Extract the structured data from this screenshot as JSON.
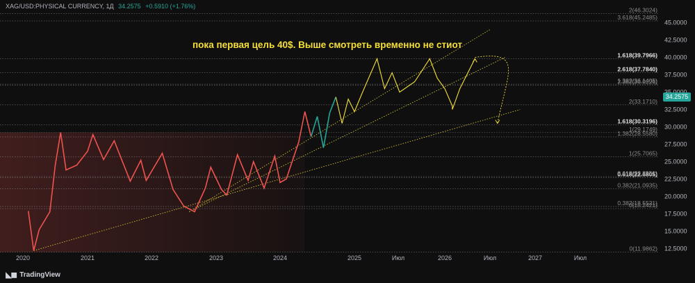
{
  "header": {
    "symbol": "XAG/USD:PHYSICAL CURRENCY, 1Д",
    "price": "34.2575",
    "change": "+0.5910 (+1.76%)"
  },
  "branding": {
    "logo_text": "TradingView"
  },
  "colors": {
    "background": "#0f0f0f",
    "up_candle": "#26a69a",
    "down_candle": "#ef5350",
    "projection": "#f5e03a",
    "trendline": "#d4c236",
    "fib_level": "#8a8a8a",
    "axis_text": "#b2b5be"
  },
  "chart_data": {
    "type": "line",
    "title": "пока первая цель 40$. Выше смотреть временно не стиот",
    "x_tick_labels": [
      "2020",
      "2021",
      "2022",
      "2023",
      "2024",
      "2025",
      "Июл",
      "2026",
      "Июл",
      "2027",
      "Июл"
    ],
    "y_tick_labels": [
      "12.5000",
      "15.0000",
      "17.5000",
      "20.0000",
      "22.5000",
      "25.0000",
      "27.5000",
      "30.0000",
      "32.5000",
      "35.0000",
      "37.5000",
      "40.0000",
      "42.5000",
      "45.0000"
    ],
    "ylim": [
      11.5,
      47.5
    ],
    "last_price": "34.2575",
    "series": [
      {
        "role": "history",
        "points": [
          [
            "2019-10",
            17.6
          ],
          [
            "2019-12",
            17.0
          ],
          [
            "2020-02",
            17.9
          ],
          [
            "2020-03",
            12.2
          ],
          [
            "2020-04",
            15.2
          ],
          [
            "2020-06",
            17.8
          ],
          [
            "2020-07",
            24.5
          ],
          [
            "2020-08",
            29.2
          ],
          [
            "2020-09",
            23.8
          ],
          [
            "2020-11",
            24.5
          ],
          [
            "2021-01",
            26.5
          ],
          [
            "2021-02",
            28.9
          ],
          [
            "2021-04",
            25.3
          ],
          [
            "2021-06",
            28.0
          ],
          [
            "2021-09",
            22.2
          ],
          [
            "2021-11",
            25.2
          ],
          [
            "2021-12",
            22.3
          ],
          [
            "2022-03",
            26.2
          ],
          [
            "2022-05",
            21.0
          ],
          [
            "2022-07",
            18.6
          ],
          [
            "2022-09",
            17.8
          ],
          [
            "2022-11",
            21.2
          ],
          [
            "2022-12",
            24.2
          ],
          [
            "2023-02",
            21.0
          ],
          [
            "2023-03",
            20.2
          ],
          [
            "2023-05",
            26.0
          ],
          [
            "2023-07",
            22.3
          ],
          [
            "2023-08",
            25.0
          ],
          [
            "2023-10",
            21.2
          ],
          [
            "2023-12",
            25.8
          ],
          [
            "2024-01",
            22.0
          ],
          [
            "2024-02",
            22.5
          ],
          [
            "2024-04",
            27.8
          ],
          [
            "2024-05",
            32.2
          ],
          [
            "2024-06",
            28.6
          ],
          [
            "2024-07",
            31.5
          ],
          [
            "2024-08",
            27.0
          ],
          [
            "2024-09",
            32.0
          ],
          [
            "2024-10",
            34.3
          ]
        ]
      },
      {
        "role": "projection",
        "points": [
          [
            "2024-10",
            34.3
          ],
          [
            "2024-11",
            30.5
          ],
          [
            "2024-12",
            34.0
          ],
          [
            "2025-01",
            32.2
          ],
          [
            "2025-02",
            34.8
          ],
          [
            "2025-04",
            39.8
          ],
          [
            "2025-05",
            35.5
          ],
          [
            "2025-06",
            37.8
          ],
          [
            "2025-07",
            35.0
          ],
          [
            "2025-09",
            36.5
          ],
          [
            "2025-11",
            39.8
          ],
          [
            "2025-12",
            37.0
          ],
          [
            "2026-01",
            35.5
          ],
          [
            "2026-02",
            33.0
          ],
          [
            "2026-02",
            32.5
          ],
          [
            "2026-03",
            35.5
          ],
          [
            "2026-05",
            39.8
          ]
        ]
      }
    ],
    "trendlines": [
      {
        "from": [
          "2020-03",
          12.2
        ],
        "to": [
          "2026-11",
          32.5
        ]
      },
      {
        "from": [
          "2022-08",
          17.8
        ],
        "to": [
          "2026-09",
          40.0
        ]
      },
      {
        "from": [
          "2022-08",
          17.8
        ],
        "to": [
          "2026-07",
          44.0
        ]
      }
    ],
    "arrow": {
      "from": [
        "2026-05",
        40.0
      ],
      "to": [
        "2026-08",
        30.5
      ]
    },
    "fib_levels": [
      {
        "label": "0(11.9862)",
        "value": 11.9862
      },
      {
        "label": "0.382(18.5521)",
        "value": 18.5521
      },
      {
        "label": "0(18.2421)",
        "value": 18.2421
      },
      {
        "label": "0.382(21.0935)",
        "value": 21.0935
      },
      {
        "label": "0.618(22.6805)",
        "value": 22.6805
      },
      {
        "label": "0.618(22.8551)",
        "value": 22.8551
      },
      {
        "label": "1(25.7065)",
        "value": 25.7065
      },
      {
        "label": "1.382(28.5580)",
        "value": 28.558
      },
      {
        "label": "1(29.1749)",
        "value": 29.1749
      },
      {
        "label": "1.618(30.3196)",
        "value": 30.3196
      },
      {
        "label": "2(33.1710)",
        "value": 33.171
      },
      {
        "label": "1.382(36.1405)",
        "value": 36.1405
      },
      {
        "label": "2.382(36.0226)",
        "value": 36.0226
      },
      {
        "label": "2.618(37.7840)",
        "value": 37.784
      },
      {
        "label": "1.618(39.7966)",
        "value": 39.7966
      },
      {
        "label": "3.618(45.2485)",
        "value": 45.2485
      },
      {
        "label": "2(46.3024)",
        "value": 46.3024
      }
    ]
  }
}
